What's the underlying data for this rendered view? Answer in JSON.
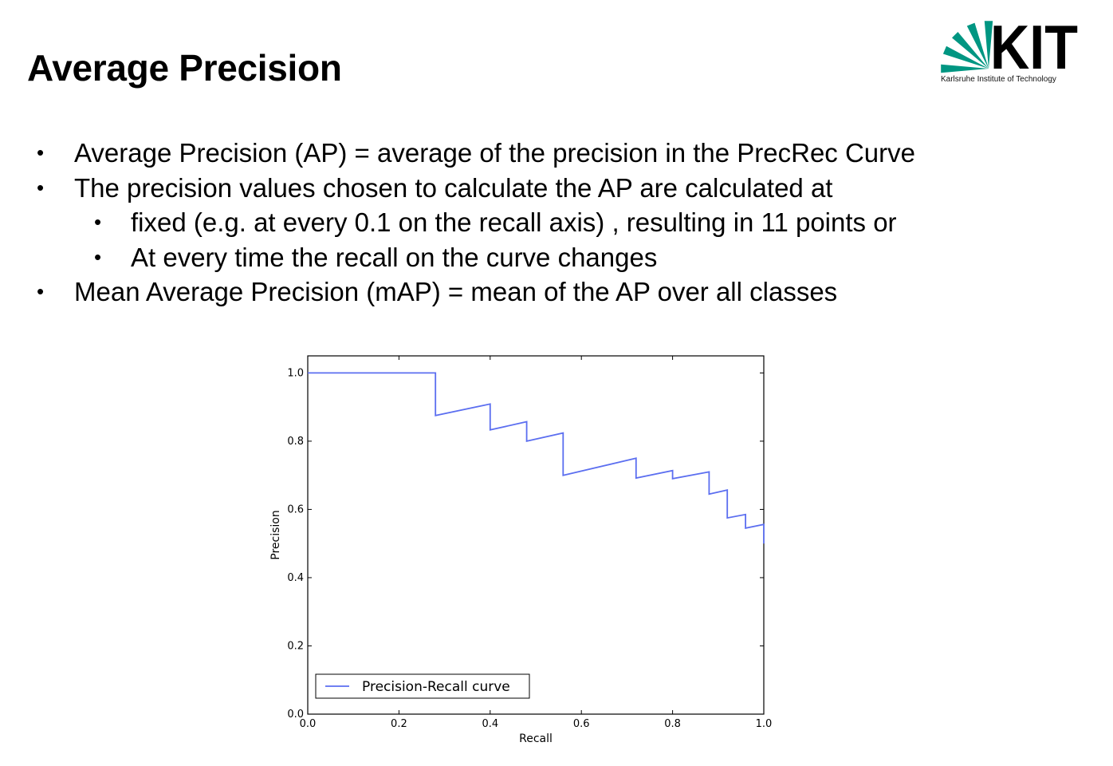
{
  "slide": {
    "title": "Average Precision",
    "logo": {
      "wordmark": "KIT",
      "subtitle": "Karlsruhe Institute of Technology",
      "colors": {
        "green": "#009682",
        "black": "#000000"
      }
    },
    "bullets": [
      {
        "level": 1,
        "text": "Average Precision (AP) = average of the precision in the PrecRec Curve"
      },
      {
        "level": 1,
        "text": "The precision values chosen to calculate the AP are calculated at"
      },
      {
        "level": 2,
        "text": "fixed (e.g. at every 0.1 on the recall axis) , resulting in 11 points or"
      },
      {
        "level": 2,
        "text": "At every time the recall on the curve changes"
      },
      {
        "level": 1,
        "text": "Mean Average Precision (mAP) = mean of the AP over all classes"
      }
    ],
    "bullet_symbol": "•"
  },
  "chart_data": {
    "type": "line",
    "title": "",
    "xlabel": "Recall",
    "ylabel": "Precision",
    "xlim": [
      0.0,
      1.0
    ],
    "ylim": [
      0.0,
      1.05
    ],
    "xticks": [
      "0.0",
      "0.2",
      "0.4",
      "0.6",
      "0.8",
      "1.0"
    ],
    "yticks": [
      "0.0",
      "0.2",
      "0.4",
      "0.6",
      "0.8",
      "1.0"
    ],
    "grid": false,
    "legend_position": "lower-left",
    "series": [
      {
        "name": "Precision-Recall curve",
        "color": "#5b6ef0",
        "x": [
          0.0,
          0.28,
          0.28,
          0.4,
          0.4,
          0.48,
          0.48,
          0.56,
          0.56,
          0.72,
          0.72,
          0.8,
          0.8,
          0.88,
          0.88,
          0.92,
          0.92,
          0.96,
          0.96,
          1.0,
          1.0
        ],
        "y": [
          1.0,
          1.0,
          0.875,
          0.909,
          0.833,
          0.857,
          0.8,
          0.824,
          0.7,
          0.75,
          0.692,
          0.714,
          0.69,
          0.71,
          0.645,
          0.657,
          0.575,
          0.585,
          0.545,
          0.556,
          0.5
        ]
      }
    ]
  }
}
